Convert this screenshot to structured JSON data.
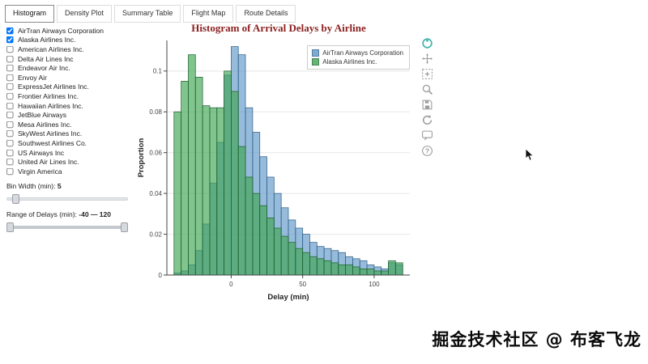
{
  "tabs": [
    {
      "label": "Histogram",
      "active": true
    },
    {
      "label": "Density Plot",
      "active": false
    },
    {
      "label": "Summary Table",
      "active": false
    },
    {
      "label": "Flight Map",
      "active": false
    },
    {
      "label": "Route Details",
      "active": false
    }
  ],
  "sidebar": {
    "airlines": [
      {
        "label": "AirTran Airways Corporation",
        "checked": true
      },
      {
        "label": "Alaska Airlines Inc.",
        "checked": true
      },
      {
        "label": "American Airlines Inc.",
        "checked": false
      },
      {
        "label": "Delta Air Lines Inc",
        "checked": false
      },
      {
        "label": "Endeavor Air Inc.",
        "checked": false
      },
      {
        "label": "Envoy Air",
        "checked": false
      },
      {
        "label": "ExpressJet Airlines Inc.",
        "checked": false
      },
      {
        "label": "Frontier Airlines Inc.",
        "checked": false
      },
      {
        "label": "Hawaiian Airlines Inc.",
        "checked": false
      },
      {
        "label": "JetBlue Airways",
        "checked": false
      },
      {
        "label": "Mesa Airlines Inc.",
        "checked": false
      },
      {
        "label": "SkyWest Airlines Inc.",
        "checked": false
      },
      {
        "label": "Southwest Airlines Co.",
        "checked": false
      },
      {
        "label": "US Airways Inc",
        "checked": false
      },
      {
        "label": "United Air Lines Inc.",
        "checked": false
      },
      {
        "label": "Virgin America",
        "checked": false
      }
    ],
    "bin_width_label": "Bin Width (min):",
    "bin_width_value": "5",
    "range_label": "Range of Delays (min):",
    "range_value": "-40 — 120"
  },
  "chart_data": {
    "type": "bar",
    "title": "Histogram of Arrival Delays by Airline",
    "title_color": "#8b1f1f",
    "xlabel": "Delay (min)",
    "ylabel": "Proportion",
    "bin_start": -40,
    "bin_width": 5,
    "xlim": [
      -45,
      125
    ],
    "ylim": [
      0,
      0.115
    ],
    "x_ticks": [
      0,
      50,
      100
    ],
    "y_ticks": [
      0,
      0.02,
      0.04,
      0.06,
      0.08,
      0.1
    ],
    "grid": "horizontal",
    "legend_position": "top-right",
    "series": [
      {
        "name": "AirTran Airways Corporation",
        "color": "#5f97c6",
        "edge": "#2d5e8a",
        "alpha": 0.65,
        "values": [
          0.001,
          0.002,
          0.005,
          0.012,
          0.025,
          0.045,
          0.065,
          0.098,
          0.112,
          0.108,
          0.082,
          0.07,
          0.058,
          0.048,
          0.04,
          0.033,
          0.027,
          0.023,
          0.02,
          0.016,
          0.014,
          0.013,
          0.012,
          0.011,
          0.009,
          0.008,
          0.007,
          0.005,
          0.004,
          0.003,
          0.006,
          0.005
        ]
      },
      {
        "name": "Alaska Airlines Inc.",
        "color": "#3fa452",
        "edge": "#1d6330",
        "alpha": 0.65,
        "values": [
          0.08,
          0.095,
          0.108,
          0.097,
          0.083,
          0.082,
          0.082,
          0.1,
          0.09,
          0.063,
          0.048,
          0.04,
          0.034,
          0.028,
          0.023,
          0.019,
          0.016,
          0.013,
          0.011,
          0.009,
          0.008,
          0.007,
          0.006,
          0.005,
          0.005,
          0.004,
          0.003,
          0.003,
          0.002,
          0.002,
          0.007,
          0.006
        ]
      }
    ]
  },
  "plot_toolbar": {
    "icons": [
      "bokeh-logo",
      "pan",
      "box-zoom",
      "wheel-zoom",
      "save",
      "reset",
      "hover",
      "help"
    ]
  },
  "watermark": "掘金技术社区 @ 布客飞龙"
}
